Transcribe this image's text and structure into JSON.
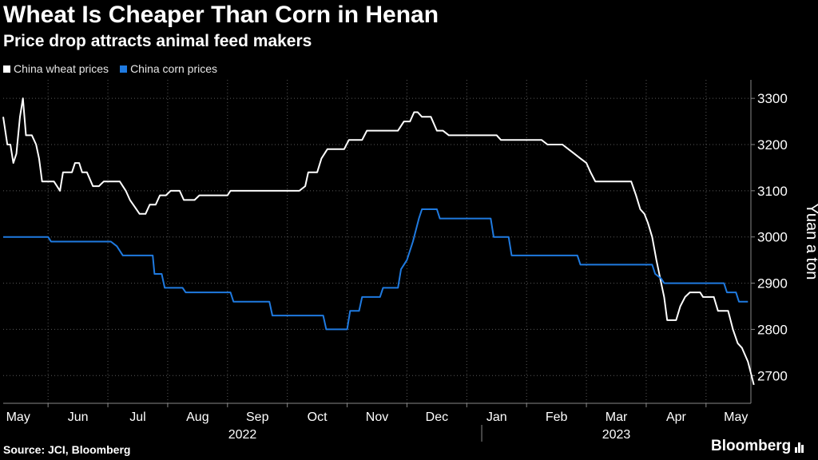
{
  "colors": {
    "background": "#000000",
    "wheat": "#ffffff",
    "corn": "#1f7ae0",
    "grid": "#5a5a5a",
    "axis": "#888888",
    "text": "#ffffff"
  },
  "footer": {
    "source": "Source: JCI, Bloomberg",
    "brand": "Bloomberg",
    "brand_icon": "bar-chart-icon"
  },
  "chart_data": {
    "type": "line",
    "title": "Wheat Is Cheaper Than Corn in Henan",
    "subtitle": "Price drop attracts animal feed makers",
    "ylabel": "Yuan a ton",
    "xlabel": "",
    "ylim": [
      2640,
      3340
    ],
    "yticks": [
      2700,
      2800,
      2900,
      3000,
      3100,
      3200,
      3300
    ],
    "xlim": [
      0,
      12.5
    ],
    "month_ticks": [
      {
        "label": "May",
        "pos": 0.25
      },
      {
        "label": "Jun",
        "pos": 1.25
      },
      {
        "label": "Jul",
        "pos": 2.25
      },
      {
        "label": "Aug",
        "pos": 3.25
      },
      {
        "label": "Sep",
        "pos": 4.25
      },
      {
        "label": "Oct",
        "pos": 5.25
      },
      {
        "label": "Nov",
        "pos": 6.25
      },
      {
        "label": "Dec",
        "pos": 7.25
      },
      {
        "label": "Jan",
        "pos": 8.25
      },
      {
        "label": "Feb",
        "pos": 9.25
      },
      {
        "label": "Mar",
        "pos": 10.25
      },
      {
        "label": "Apr",
        "pos": 11.25
      },
      {
        "label": "May",
        "pos": 12.25
      }
    ],
    "month_boundaries": [
      0.75,
      1.75,
      2.75,
      3.75,
      4.75,
      5.75,
      6.75,
      7.75,
      8.75,
      9.75,
      10.75,
      11.75
    ],
    "years": [
      {
        "label": "2022",
        "pos": 4.0
      },
      {
        "label": "2023",
        "pos": 10.25
      }
    ],
    "year_divider": 8.0,
    "grid": true,
    "legend": "top-left",
    "series": [
      {
        "name": "China wheat prices",
        "key": "wheat",
        "points": [
          [
            0.0,
            3260
          ],
          [
            0.07,
            3200
          ],
          [
            0.12,
            3200
          ],
          [
            0.17,
            3160
          ],
          [
            0.22,
            3180
          ],
          [
            0.28,
            3260
          ],
          [
            0.33,
            3300
          ],
          [
            0.38,
            3220
          ],
          [
            0.48,
            3220
          ],
          [
            0.55,
            3200
          ],
          [
            0.6,
            3170
          ],
          [
            0.65,
            3120
          ],
          [
            0.85,
            3120
          ],
          [
            0.95,
            3100
          ],
          [
            1.0,
            3140
          ],
          [
            1.15,
            3140
          ],
          [
            1.2,
            3160
          ],
          [
            1.27,
            3160
          ],
          [
            1.32,
            3140
          ],
          [
            1.4,
            3140
          ],
          [
            1.5,
            3110
          ],
          [
            1.6,
            3110
          ],
          [
            1.68,
            3120
          ],
          [
            1.95,
            3120
          ],
          [
            2.05,
            3100
          ],
          [
            2.12,
            3080
          ],
          [
            2.2,
            3065
          ],
          [
            2.28,
            3050
          ],
          [
            2.38,
            3050
          ],
          [
            2.45,
            3070
          ],
          [
            2.55,
            3070
          ],
          [
            2.62,
            3090
          ],
          [
            2.72,
            3090
          ],
          [
            2.8,
            3100
          ],
          [
            2.95,
            3100
          ],
          [
            3.02,
            3080
          ],
          [
            3.2,
            3080
          ],
          [
            3.28,
            3090
          ],
          [
            3.75,
            3090
          ],
          [
            3.8,
            3100
          ],
          [
            4.95,
            3100
          ],
          [
            5.05,
            3110
          ],
          [
            5.1,
            3140
          ],
          [
            5.25,
            3140
          ],
          [
            5.32,
            3170
          ],
          [
            5.42,
            3190
          ],
          [
            5.7,
            3190
          ],
          [
            5.78,
            3210
          ],
          [
            6.0,
            3210
          ],
          [
            6.08,
            3230
          ],
          [
            6.6,
            3230
          ],
          [
            6.7,
            3250
          ],
          [
            6.8,
            3250
          ],
          [
            6.87,
            3270
          ],
          [
            6.93,
            3270
          ],
          [
            7.0,
            3260
          ],
          [
            7.15,
            3260
          ],
          [
            7.25,
            3230
          ],
          [
            7.35,
            3230
          ],
          [
            7.45,
            3220
          ],
          [
            8.25,
            3220
          ],
          [
            8.32,
            3210
          ],
          [
            9.0,
            3210
          ],
          [
            9.1,
            3200
          ],
          [
            9.35,
            3200
          ],
          [
            9.45,
            3190
          ],
          [
            9.55,
            3180
          ],
          [
            9.65,
            3170
          ],
          [
            9.75,
            3160
          ],
          [
            9.82,
            3140
          ],
          [
            9.9,
            3120
          ],
          [
            10.5,
            3120
          ],
          [
            10.58,
            3090
          ],
          [
            10.65,
            3060
          ],
          [
            10.72,
            3050
          ],
          [
            10.78,
            3030
          ],
          [
            10.85,
            3000
          ],
          [
            10.92,
            2950
          ],
          [
            11.0,
            2900
          ],
          [
            11.05,
            2870
          ],
          [
            11.1,
            2820
          ],
          [
            11.25,
            2820
          ],
          [
            11.32,
            2850
          ],
          [
            11.4,
            2870
          ],
          [
            11.48,
            2880
          ],
          [
            11.65,
            2880
          ],
          [
            11.7,
            2870
          ],
          [
            11.88,
            2870
          ],
          [
            11.95,
            2840
          ],
          [
            12.12,
            2840
          ],
          [
            12.2,
            2800
          ],
          [
            12.28,
            2770
          ],
          [
            12.35,
            2760
          ],
          [
            12.45,
            2730
          ],
          [
            12.55,
            2680
          ]
        ]
      },
      {
        "name": "China corn prices",
        "key": "corn",
        "points": [
          [
            0.0,
            3000
          ],
          [
            0.75,
            3000
          ],
          [
            0.8,
            2990
          ],
          [
            1.8,
            2990
          ],
          [
            1.9,
            2980
          ],
          [
            2.0,
            2960
          ],
          [
            2.5,
            2960
          ],
          [
            2.53,
            2920
          ],
          [
            2.65,
            2920
          ],
          [
            2.7,
            2890
          ],
          [
            3.0,
            2890
          ],
          [
            3.05,
            2880
          ],
          [
            3.8,
            2880
          ],
          [
            3.85,
            2860
          ],
          [
            4.45,
            2860
          ],
          [
            4.5,
            2830
          ],
          [
            5.35,
            2830
          ],
          [
            5.4,
            2800
          ],
          [
            5.75,
            2800
          ],
          [
            5.8,
            2840
          ],
          [
            5.95,
            2840
          ],
          [
            6.0,
            2870
          ],
          [
            6.3,
            2870
          ],
          [
            6.35,
            2890
          ],
          [
            6.6,
            2890
          ],
          [
            6.65,
            2930
          ],
          [
            6.75,
            2950
          ],
          [
            6.85,
            2990
          ],
          [
            6.95,
            3040
          ],
          [
            7.0,
            3060
          ],
          [
            7.25,
            3060
          ],
          [
            7.3,
            3040
          ],
          [
            8.15,
            3040
          ],
          [
            8.2,
            3000
          ],
          [
            8.45,
            3000
          ],
          [
            8.5,
            2960
          ],
          [
            9.6,
            2960
          ],
          [
            9.65,
            2940
          ],
          [
            10.85,
            2940
          ],
          [
            10.9,
            2920
          ],
          [
            11.0,
            2910
          ],
          [
            11.05,
            2900
          ],
          [
            12.05,
            2900
          ],
          [
            12.1,
            2880
          ],
          [
            12.25,
            2880
          ],
          [
            12.3,
            2860
          ],
          [
            12.45,
            2860
          ]
        ]
      }
    ]
  }
}
